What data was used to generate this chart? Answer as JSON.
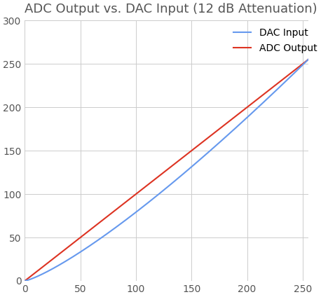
{
  "title": "ADC Output vs. DAC Input (12 dB Attenuation)",
  "xlim": [
    0,
    255
  ],
  "ylim": [
    0,
    300
  ],
  "xticks": [
    0,
    50,
    100,
    150,
    200,
    250
  ],
  "yticks": [
    0,
    50,
    100,
    150,
    200,
    250,
    300
  ],
  "legend_labels": [
    "ADC Output",
    "DAC Input"
  ],
  "adc_color": "#6699EE",
  "dac_color": "#DD3322",
  "title_fontsize": 13,
  "legend_fontsize": 10,
  "tick_fontsize": 10,
  "background_color": "#ffffff",
  "grid_color": "#cccccc",
  "adc_linewidth": 1.5,
  "dac_linewidth": 1.5,
  "adc_power": 1.25,
  "dac_scale": 1.0
}
